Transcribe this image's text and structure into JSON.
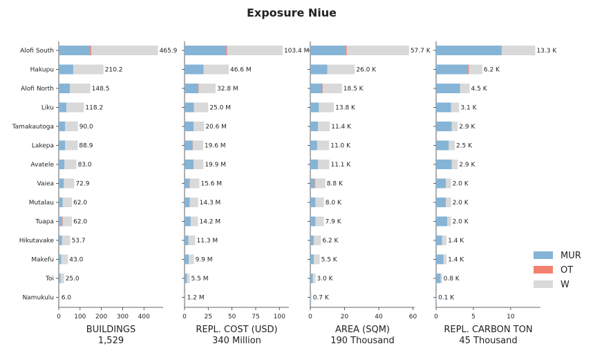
{
  "title": "Exposure Niue",
  "colors": {
    "MUR": "#86b4d6",
    "OT": "#f4806f",
    "W": "#d9d9d9"
  },
  "legend": [
    "MUR",
    "OT",
    "W"
  ],
  "categories": [
    "Alofi South",
    "Hakupu",
    "Alofi North",
    "Liku",
    "Tamakautoga",
    "Lakepa",
    "Avatele",
    "Vaiea",
    "Mutalau",
    "Tuapa",
    "Hikutavake",
    "Makefu",
    "Toi",
    "Namukulu"
  ],
  "chart_data": [
    {
      "type": "bar",
      "orientation": "horizontal",
      "stacked": true,
      "xlabel": "BUILDINGS",
      "total": "1,529",
      "xlim": [
        0,
        490
      ],
      "xticks": [
        0,
        100,
        200,
        300,
        400
      ],
      "xtick_labels": [
        "0",
        "100",
        "200",
        "300",
        "400"
      ],
      "series": [
        {
          "name": "MUR",
          "values": [
            148,
            68,
            50,
            36,
            30,
            30,
            27,
            24,
            18,
            16,
            15,
            12,
            8,
            2
          ]
        },
        {
          "name": "OT",
          "values": [
            5,
            0,
            2,
            0,
            0,
            0,
            0,
            0,
            0,
            2,
            0,
            0,
            0,
            0
          ]
        },
        {
          "name": "W",
          "values": [
            312.9,
            142.2,
            96.5,
            82.2,
            60,
            58.9,
            56,
            48.9,
            44,
            44,
            38.7,
            31,
            17,
            4
          ]
        }
      ],
      "labels": [
        "465.9",
        "210.2",
        "148.5",
        "118.2",
        "90.0",
        "88.9",
        "83.0",
        "72.9",
        "62.0",
        "62.0",
        "53.7",
        "43.0",
        "25.0",
        "6.0"
      ]
    },
    {
      "type": "bar",
      "orientation": "horizontal",
      "stacked": true,
      "xlabel": "REPL. COST (USD)",
      "total": "340 Million",
      "xlim": [
        0,
        110
      ],
      "xticks": [
        0,
        25,
        50,
        75,
        100
      ],
      "xtick_labels": [
        "0",
        "25",
        "50",
        "75",
        "100"
      ],
      "series": [
        {
          "name": "MUR",
          "values": [
            44,
            20,
            14.5,
            10,
            9.5,
            8.5,
            9.5,
            5,
            5.5,
            6.5,
            4,
            4.5,
            2.5,
            0.5
          ]
        },
        {
          "name": "OT",
          "values": [
            0.8,
            0,
            0.4,
            0,
            0,
            0.3,
            0,
            0.5,
            0,
            0,
            0,
            0,
            0,
            0
          ]
        },
        {
          "name": "W",
          "values": [
            58.6,
            26.6,
            17.9,
            15,
            11.1,
            10.8,
            10.4,
            10.1,
            8.8,
            7.7,
            7.3,
            5.4,
            3,
            0.7
          ]
        }
      ],
      "labels": [
        "103.4 M",
        "46.6 M",
        "32.8 M",
        "25.0 M",
        "20.6 M",
        "19.6 M",
        "19.9 M",
        "15.6 M",
        "14.3 M",
        "14.2 M",
        "11.3 M",
        "9.9 M",
        "5.5 M",
        "1.2 M"
      ]
    },
    {
      "type": "bar",
      "orientation": "horizontal",
      "stacked": true,
      "xlabel": "AREA (SQM)",
      "total": "190 Thousand",
      "xlim": [
        0,
        61
      ],
      "xticks": [
        0,
        20,
        40,
        60
      ],
      "xtick_labels": [
        "0",
        "20",
        "40",
        "60"
      ],
      "series": [
        {
          "name": "MUR",
          "values": [
            20.5,
            10,
            7,
            5,
            4.5,
            4,
            4.5,
            2.5,
            3,
            3,
            2,
            2,
            1.5,
            0.2
          ]
        },
        {
          "name": "OT",
          "values": [
            0.7,
            0,
            0.3,
            0,
            0,
            0,
            0,
            0.4,
            0,
            0,
            0,
            0,
            0,
            0
          ]
        },
        {
          "name": "W",
          "values": [
            36.5,
            16,
            11.2,
            8.8,
            6.9,
            7,
            6.6,
            5.9,
            5,
            4.9,
            4.2,
            3.5,
            1.5,
            0.5
          ]
        }
      ],
      "labels": [
        "57.7 K",
        "26.0 K",
        "18.5 K",
        "13.8 K",
        "11.4 K",
        "11.0 K",
        "11.1 K",
        "8.8 K",
        "8.0 K",
        "7.9 K",
        "6.2 K",
        "5.5 K",
        "3.0 K",
        "0.7 K"
      ]
    },
    {
      "type": "bar",
      "orientation": "horizontal",
      "stacked": true,
      "xlabel": "REPL. CARBON TON",
      "total": "45 Thousand",
      "xlim": [
        0,
        14
      ],
      "xticks": [
        0,
        5,
        10
      ],
      "xtick_labels": [
        "0",
        "5",
        "10"
      ],
      "series": [
        {
          "name": "MUR",
          "values": [
            8.8,
            4.3,
            3.2,
            2,
            2.1,
            1.7,
            2.1,
            1.3,
            1.3,
            1.5,
            0.8,
            1,
            0.6,
            0.05
          ]
        },
        {
          "name": "OT",
          "values": [
            0,
            0.1,
            0,
            0,
            0,
            0,
            0,
            0,
            0,
            0,
            0,
            0,
            0,
            0
          ]
        },
        {
          "name": "W",
          "values": [
            4.5,
            1.8,
            1.3,
            1.1,
            0.8,
            0.8,
            0.8,
            0.7,
            0.7,
            0.5,
            0.6,
            0.4,
            0.2,
            0.05
          ]
        }
      ],
      "labels": [
        "13.3 K",
        "6.2 K",
        "4.5 K",
        "3.1 K",
        "2.9 K",
        "2.5 K",
        "2.9 K",
        "2.0 K",
        "2.0 K",
        "2.0 K",
        "1.4 K",
        "1.4 K",
        "0.8 K",
        "0.1 K"
      ]
    }
  ]
}
